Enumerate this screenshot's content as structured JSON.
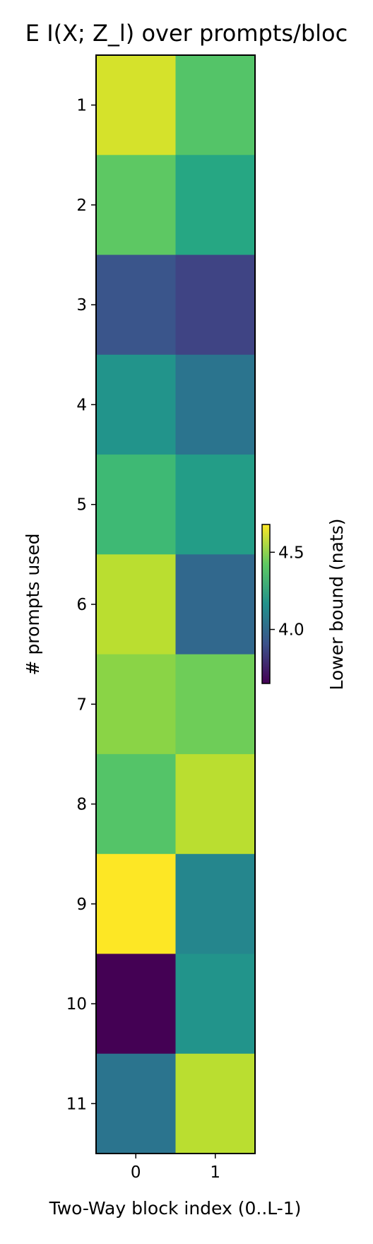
{
  "chart_data": {
    "type": "heatmap",
    "title": "E  I(X; Z_l) over prompts/bloc",
    "xlabel": "Two-Way block index (0..L-1)",
    "ylabel": "# prompts used",
    "x_categories": [
      "0",
      "1"
    ],
    "y_categories": [
      "1",
      "2",
      "3",
      "4",
      "5",
      "6",
      "7",
      "8",
      "9",
      "10",
      "11"
    ],
    "values": [
      [
        4.62,
        4.4
      ],
      [
        4.42,
        4.27
      ],
      [
        3.92,
        3.87
      ],
      [
        4.18,
        4.05
      ],
      [
        4.35,
        4.22
      ],
      [
        4.58,
        4.0
      ],
      [
        4.5,
        4.45
      ],
      [
        4.4,
        4.58
      ],
      [
        4.68,
        4.12
      ],
      [
        3.65,
        4.18
      ],
      [
        4.05,
        4.58
      ]
    ],
    "colorbar": {
      "label": "Lower bound (nats)",
      "ticks": [
        "4.0",
        "4.5"
      ],
      "range": [
        3.65,
        4.68
      ],
      "colormap": "viridis"
    }
  }
}
